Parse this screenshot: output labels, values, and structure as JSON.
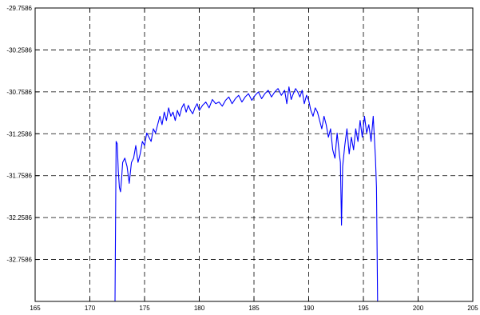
{
  "chart_data": {
    "type": "line",
    "title": "",
    "xlabel": "",
    "ylabel": "",
    "xlim": [
      165,
      205
    ],
    "ylim": [
      -33.2586,
      -29.7586
    ],
    "grid": true,
    "colors": {
      "series": "#0000ff",
      "grid": "#000000",
      "axis": "#000000"
    },
    "x_ticks": [
      "165",
      "170",
      "175",
      "180",
      "185",
      "190",
      "195",
      "200",
      "205"
    ],
    "x_tick_values": [
      165,
      170,
      175,
      180,
      185,
      190,
      195,
      200,
      205
    ],
    "y_ticks": [
      "-29.7586",
      "-30.2586",
      "-30.7586",
      "-31.2586",
      "-31.7586",
      "-32.2586",
      "-32.7586"
    ],
    "y_tick_values": [
      -29.7586,
      -30.2586,
      -30.7586,
      -31.2586,
      -31.7586,
      -32.2586,
      -32.7586
    ],
    "series": [
      {
        "x": [
          172.3,
          172.4,
          172.5,
          172.6,
          172.7,
          172.8,
          172.9,
          173.0,
          173.2,
          173.4,
          173.6,
          173.8,
          174.0,
          174.2,
          174.4,
          174.6,
          174.8,
          175.0,
          175.2,
          175.4,
          175.6,
          175.8,
          176.0,
          176.2,
          176.4,
          176.6,
          176.8,
          177.0,
          177.2,
          177.4,
          177.6,
          177.8,
          178.0,
          178.2,
          178.4,
          178.6,
          178.8,
          179.0,
          179.2,
          179.4,
          179.6,
          179.8,
          180.0,
          180.3,
          180.6,
          180.9,
          181.2,
          181.5,
          181.8,
          182.1,
          182.4,
          182.7,
          183.0,
          183.3,
          183.6,
          183.9,
          184.2,
          184.5,
          184.8,
          185.1,
          185.4,
          185.7,
          186.0,
          186.3,
          186.6,
          186.9,
          187.2,
          187.5,
          187.8,
          188.0,
          188.2,
          188.4,
          188.6,
          188.8,
          189.0,
          189.2,
          189.4,
          189.6,
          189.8,
          190.0,
          190.2,
          190.4,
          190.6,
          190.8,
          191.0,
          191.2,
          191.4,
          191.6,
          191.8,
          192.0,
          192.2,
          192.4,
          192.6,
          192.8,
          192.9,
          193.0,
          193.1,
          193.3,
          193.5,
          193.7,
          193.9,
          194.1,
          194.3,
          194.5,
          194.7,
          194.9,
          195.1,
          195.3,
          195.5,
          195.7,
          195.9,
          196.0,
          196.1,
          196.2,
          196.3
        ],
        "y": [
          -33.26,
          -31.35,
          -31.38,
          -31.7,
          -31.9,
          -31.95,
          -31.8,
          -31.6,
          -31.55,
          -31.65,
          -31.85,
          -31.6,
          -31.55,
          -31.4,
          -31.6,
          -31.5,
          -31.35,
          -31.4,
          -31.25,
          -31.3,
          -31.35,
          -31.2,
          -31.25,
          -31.15,
          -31.05,
          -31.15,
          -31.0,
          -31.1,
          -30.95,
          -31.05,
          -31.0,
          -31.1,
          -30.98,
          -31.05,
          -30.95,
          -30.9,
          -31.0,
          -30.92,
          -30.98,
          -31.02,
          -30.95,
          -30.9,
          -30.98,
          -30.92,
          -30.88,
          -30.95,
          -30.85,
          -30.9,
          -30.88,
          -30.93,
          -30.86,
          -30.82,
          -30.9,
          -30.84,
          -30.8,
          -30.88,
          -30.82,
          -30.78,
          -30.86,
          -30.8,
          -30.76,
          -30.84,
          -30.78,
          -30.74,
          -30.82,
          -30.76,
          -30.72,
          -30.8,
          -30.74,
          -30.9,
          -30.7,
          -30.85,
          -30.78,
          -30.72,
          -30.76,
          -30.82,
          -30.74,
          -30.9,
          -30.8,
          -30.86,
          -30.98,
          -31.05,
          -30.95,
          -31.0,
          -31.1,
          -31.2,
          -31.05,
          -31.15,
          -31.3,
          -31.2,
          -31.45,
          -31.55,
          -31.25,
          -31.5,
          -31.6,
          -32.35,
          -31.65,
          -31.4,
          -31.2,
          -31.5,
          -31.3,
          -31.45,
          -31.2,
          -31.35,
          -31.1,
          -31.3,
          -31.05,
          -31.25,
          -31.15,
          -31.35,
          -31.05,
          -31.3,
          -31.55,
          -31.9,
          -33.26
        ]
      }
    ]
  }
}
